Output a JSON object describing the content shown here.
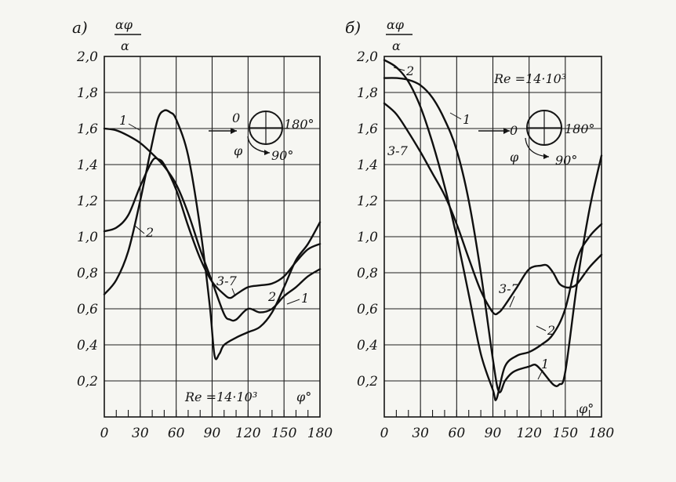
{
  "chart_data": [
    {
      "type": "line",
      "panel_label": "а)",
      "ylabel_num": "αφ",
      "ylabel_den": "α",
      "xlabel": "φ°",
      "annotation": "Re =14·10³",
      "inset": {
        "left": "0",
        "right": "180°",
        "bottom": "90°",
        "angle": "φ"
      },
      "xlim": [
        0,
        180
      ],
      "ylim": [
        0,
        2.0
      ],
      "xticks": [
        0,
        30,
        60,
        90,
        120,
        150,
        180
      ],
      "yticks": [
        0.2,
        0.4,
        0.6,
        0.8,
        1.0,
        1.2,
        1.4,
        1.6,
        1.8,
        2.0
      ],
      "xtick_labels": [
        "0",
        "30",
        "60",
        "90",
        "120",
        "150",
        "180"
      ],
      "ytick_labels": [
        "0,2",
        "0,4",
        "0,6",
        "0,8",
        "1,0",
        "1,2",
        "1,4",
        "1,6",
        "1,8",
        "2,0"
      ],
      "grid": true,
      "series": [
        {
          "name": "1",
          "x": [
            0,
            10,
            20,
            30,
            40,
            50,
            60,
            70,
            80,
            90,
            100,
            105,
            110,
            120,
            130,
            140,
            150,
            160,
            170,
            180
          ],
          "y": [
            1.6,
            1.59,
            1.56,
            1.52,
            1.46,
            1.39,
            1.29,
            1.13,
            0.93,
            0.75,
            0.57,
            0.54,
            0.54,
            0.6,
            0.58,
            0.6,
            0.67,
            0.72,
            0.78,
            0.82
          ]
        },
        {
          "name": "2",
          "x": [
            0,
            10,
            20,
            30,
            40,
            45,
            50,
            55,
            60,
            70,
            80,
            88,
            92,
            96,
            100,
            110,
            120,
            130,
            140,
            150,
            160,
            170,
            180
          ],
          "y": [
            0.68,
            0.76,
            0.92,
            1.2,
            1.52,
            1.66,
            1.7,
            1.69,
            1.65,
            1.45,
            1.05,
            0.62,
            0.34,
            0.35,
            0.4,
            0.44,
            0.47,
            0.5,
            0.58,
            0.72,
            0.87,
            0.96,
            1.08
          ]
        },
        {
          "name": "3-7",
          "x": [
            0,
            10,
            20,
            30,
            40,
            45,
            50,
            60,
            70,
            80,
            90,
            100,
            105,
            110,
            120,
            130,
            140,
            150,
            160,
            170,
            180
          ],
          "y": [
            1.03,
            1.05,
            1.12,
            1.28,
            1.42,
            1.43,
            1.4,
            1.26,
            1.06,
            0.88,
            0.75,
            0.68,
            0.66,
            0.68,
            0.72,
            0.73,
            0.74,
            0.78,
            0.86,
            0.93,
            0.96
          ]
        }
      ],
      "series_labels": [
        "1",
        "2",
        "3-7",
        "2",
        "1"
      ]
    },
    {
      "type": "line",
      "panel_label": "б)",
      "ylabel_num": "αφ",
      "ylabel_den": "α",
      "xlabel": "φ°",
      "annotation": "Re =14·10³",
      "inset": {
        "left": "0",
        "right": "180°",
        "bottom": "90°",
        "angle": "φ"
      },
      "xlim": [
        0,
        180
      ],
      "ylim": [
        0,
        2.0
      ],
      "xticks": [
        0,
        30,
        60,
        90,
        120,
        150,
        180
      ],
      "yticks": [
        0.2,
        0.4,
        0.6,
        0.8,
        1.0,
        1.2,
        1.4,
        1.6,
        1.8,
        2.0
      ],
      "xtick_labels": [
        "0",
        "30",
        "60",
        "90",
        "120",
        "150",
        "180"
      ],
      "ytick_labels": [
        "0,2",
        "0,4",
        "0,6",
        "0,8",
        "1,0",
        "1,2",
        "1,4",
        "1,6",
        "1,8",
        "2,0"
      ],
      "grid": true,
      "series": [
        {
          "name": "1",
          "x": [
            0,
            10,
            20,
            30,
            40,
            50,
            60,
            70,
            80,
            90,
            95,
            100,
            105,
            110,
            120,
            125,
            130,
            140,
            145,
            150,
            160,
            170,
            180
          ],
          "y": [
            1.88,
            1.88,
            1.87,
            1.84,
            1.77,
            1.65,
            1.48,
            1.2,
            0.8,
            0.32,
            0.14,
            0.2,
            0.24,
            0.26,
            0.28,
            0.29,
            0.26,
            0.18,
            0.18,
            0.25,
            0.75,
            1.15,
            1.45
          ]
        },
        {
          "name": "2",
          "x": [
            0,
            10,
            20,
            30,
            40,
            50,
            60,
            70,
            80,
            90,
            93,
            100,
            110,
            120,
            130,
            140,
            150,
            160,
            170,
            180
          ],
          "y": [
            1.98,
            1.94,
            1.86,
            1.72,
            1.52,
            1.28,
            1.0,
            0.68,
            0.35,
            0.15,
            0.1,
            0.28,
            0.34,
            0.36,
            0.4,
            0.46,
            0.6,
            0.88,
            1.0,
            1.07
          ]
        },
        {
          "name": "3-7",
          "x": [
            0,
            10,
            20,
            30,
            40,
            50,
            60,
            70,
            80,
            90,
            95,
            100,
            110,
            120,
            130,
            135,
            140,
            145,
            150,
            155,
            160,
            170,
            180
          ],
          "y": [
            1.74,
            1.68,
            1.58,
            1.47,
            1.35,
            1.23,
            1.07,
            0.88,
            0.7,
            0.58,
            0.58,
            0.62,
            0.72,
            0.82,
            0.84,
            0.84,
            0.8,
            0.74,
            0.72,
            0.72,
            0.74,
            0.83,
            0.9
          ]
        }
      ],
      "series_labels": [
        "2",
        "1",
        "3-7",
        "3-7",
        "2",
        "1"
      ]
    }
  ]
}
